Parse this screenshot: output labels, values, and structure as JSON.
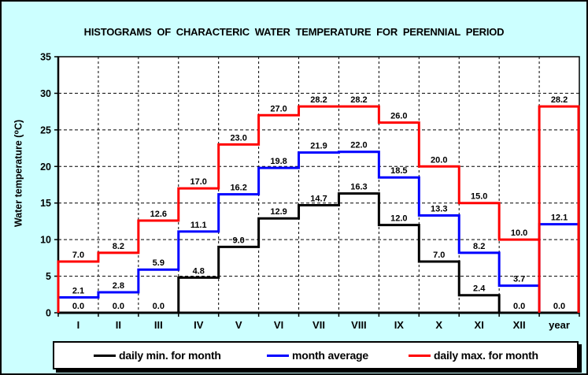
{
  "title": "HISTOGRAMS  OF  CHARACTERIC  WATER  TEMPERATURE  FOR  PERENNIAL  PERIOD",
  "window": {
    "background": "#CCFFFF",
    "border_color": "#000000",
    "plot_background": "#FFFFFF"
  },
  "chart_data": {
    "type": "line",
    "subtype": "step-histogram",
    "title": "HISTOGRAMS  OF  CHARACTERIC  WATER  TEMPERATURE  FOR  PERENNIAL  PERIOD",
    "xlabel": "",
    "ylabel": "Water temperature (⁰C)",
    "ylim": [
      0,
      35
    ],
    "ytick_step": 5,
    "yticks": [
      "0",
      "5",
      "10",
      "15",
      "20",
      "25",
      "30",
      "35"
    ],
    "grid": true,
    "grid_style": "dashed",
    "grid_color": "#000000",
    "legend_position": "bottom",
    "categories": [
      "I",
      "II",
      "III",
      "IV",
      "V",
      "VI",
      "VII",
      "VIII",
      "IX",
      "X",
      "XI",
      "XII",
      "year"
    ],
    "series": [
      {
        "name": "daily min. for month",
        "color": "#000000",
        "values": [
          0.0,
          0.0,
          0.0,
          4.8,
          9.0,
          12.9,
          14.7,
          16.3,
          12.0,
          7.0,
          2.4,
          0.0,
          0.0
        ]
      },
      {
        "name": "month average",
        "color": "#0000FF",
        "values": [
          2.1,
          2.8,
          5.9,
          11.1,
          16.2,
          19.8,
          21.9,
          22.0,
          18.5,
          13.3,
          8.2,
          3.7,
          12.1
        ]
      },
      {
        "name": "daily max. for month",
        "color": "#FF0000",
        "values": [
          7.0,
          8.2,
          12.6,
          17.0,
          23.0,
          27.0,
          28.2,
          28.2,
          26.0,
          20.0,
          15.0,
          10.0,
          28.2
        ]
      }
    ]
  }
}
